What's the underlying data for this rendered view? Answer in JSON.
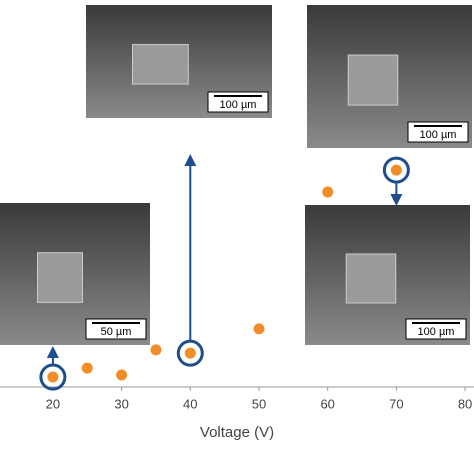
{
  "chart_data": {
    "type": "scatter",
    "x_label": "Voltage (V)",
    "x": [
      20,
      25,
      30,
      35,
      40,
      50,
      60,
      70
    ],
    "values": [
      6.9,
      9.1,
      7.4,
      13.6,
      12.8,
      18.8,
      52.6,
      58.0
    ],
    "color": "#f28c28",
    "xlim": [
      12.3,
      81.3
    ],
    "xticks": [
      20,
      30,
      40,
      50,
      60,
      70,
      80
    ],
    "ylim": [
      0,
      100
    ],
    "annotations": [
      {
        "label": "100 µm"
      },
      {
        "label": "100 µm"
      },
      {
        "label": "50 µm"
      },
      {
        "label": "100 µm"
      }
    ]
  }
}
